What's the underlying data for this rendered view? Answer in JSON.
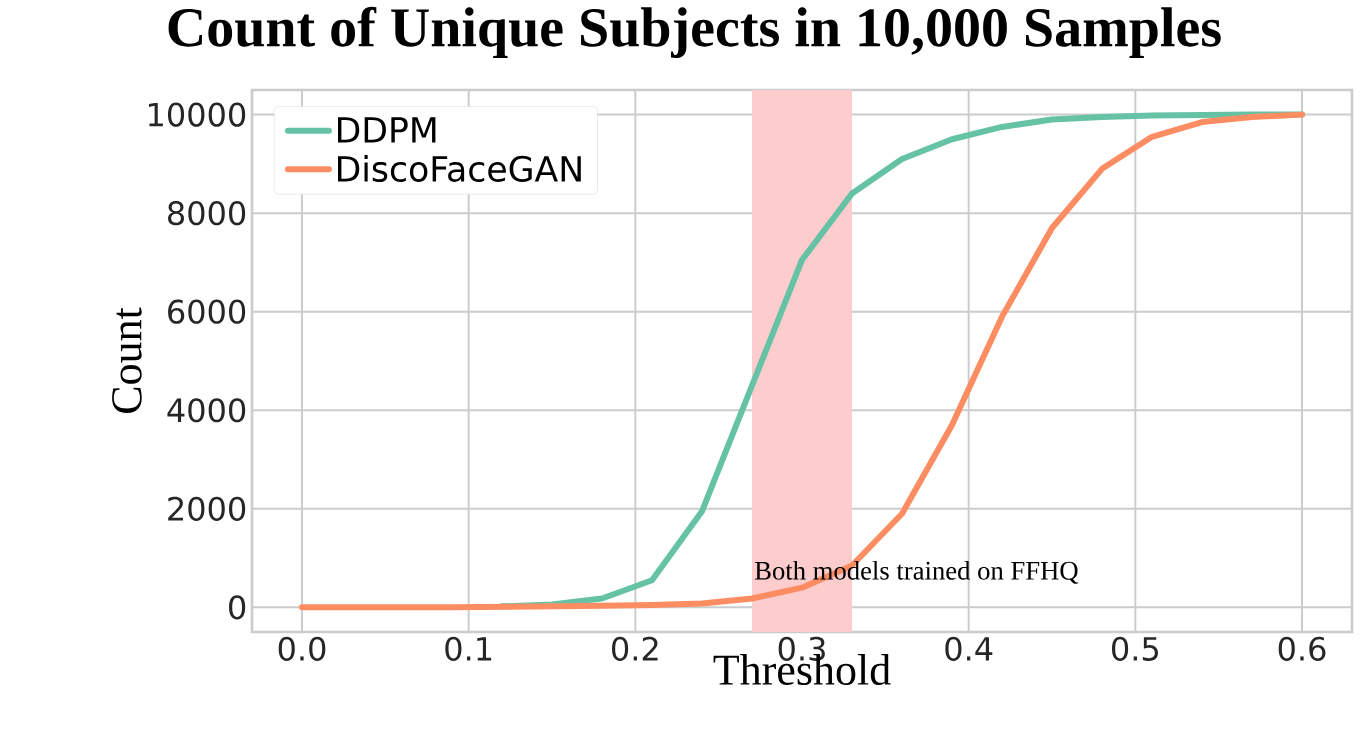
{
  "chart_data": {
    "type": "line",
    "title": "Count of Unique Subjects in 10,000 Samples",
    "xlabel": "Threshold",
    "ylabel": "Count",
    "x": [
      0.0,
      0.03,
      0.06,
      0.09,
      0.12,
      0.15,
      0.18,
      0.21,
      0.24,
      0.27,
      0.3,
      0.33,
      0.36,
      0.39,
      0.42,
      0.45,
      0.48,
      0.51,
      0.54,
      0.57,
      0.6
    ],
    "series": [
      {
        "name": "DDPM",
        "color": "#66c2a5",
        "values": [
          null,
          null,
          null,
          null,
          20,
          60,
          180,
          550,
          1950,
          4500,
          7050,
          8400,
          9100,
          9500,
          9750,
          9900,
          9950,
          9980,
          9990,
          10000,
          10000
        ]
      },
      {
        "name": "DiscoFaceGAN",
        "color": "#fc8d62",
        "values": [
          0,
          0,
          0,
          0,
          10,
          20,
          30,
          50,
          80,
          180,
          400,
          850,
          1900,
          3700,
          5900,
          7700,
          8900,
          9550,
          9850,
          9950,
          10000
        ]
      }
    ],
    "xlim": [
      -0.03,
      0.63
    ],
    "ylim": [
      -500,
      10500
    ],
    "xticks": [
      {
        "value": 0,
        "label": "0.0"
      },
      0.1,
      0.2,
      0.3,
      0.4,
      0.5,
      0.6
    ],
    "yticks": [
      0,
      2000,
      4000,
      6000,
      8000,
      10000
    ],
    "bands": [
      {
        "axis": "x",
        "from": 0.27,
        "to": 0.33,
        "color": "#fdcccc"
      }
    ],
    "annotations": [
      "Both models trained on FFHQ"
    ],
    "grid": true,
    "legend": "top left",
    "line_style": "solid",
    "marker": "none"
  }
}
